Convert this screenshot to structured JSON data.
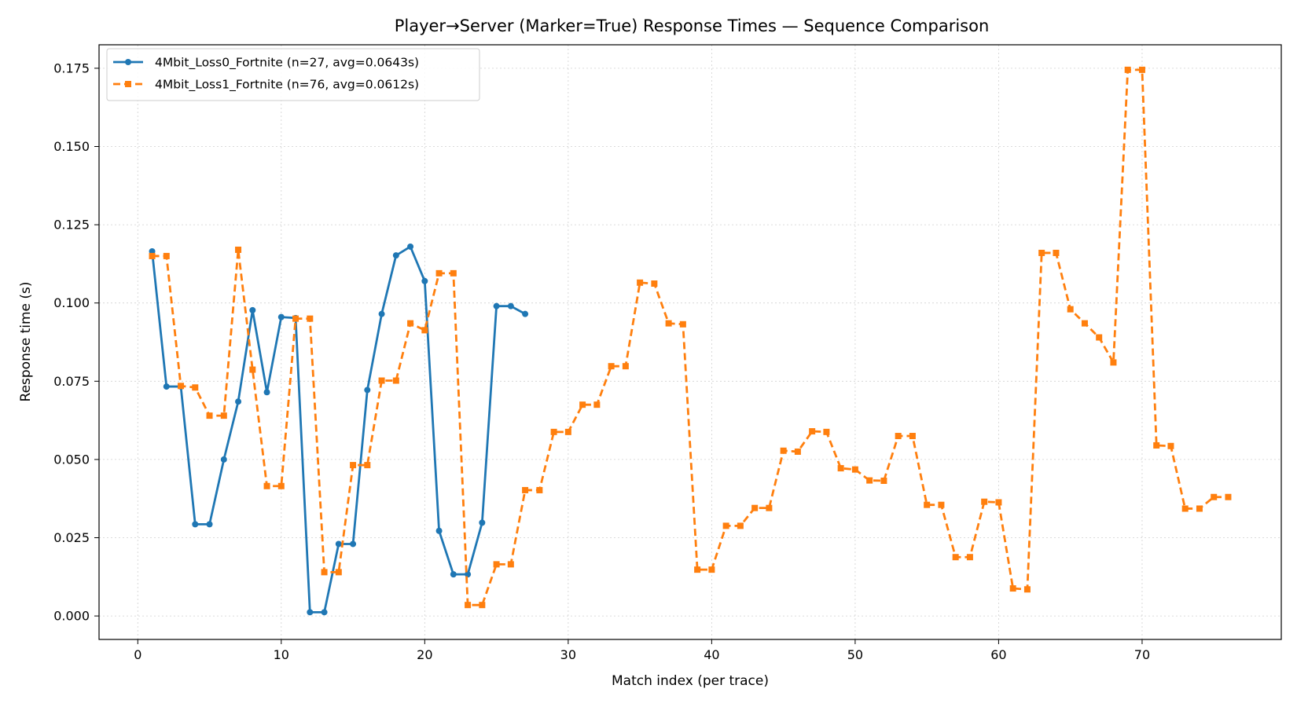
{
  "chart_data": {
    "type": "line",
    "title": "Player→Server (Marker=True) Response Times — Sequence Comparison",
    "xlabel": "Match index (per trace)",
    "ylabel": "Response time (s)",
    "xlim": [
      -2.7,
      79.7
    ],
    "ylim": [
      -0.0075,
      0.1825
    ],
    "xticks": [
      0,
      10,
      20,
      30,
      40,
      50,
      60,
      70
    ],
    "xtick_labels": [
      "0",
      "10",
      "20",
      "30",
      "40",
      "50",
      "60",
      "70"
    ],
    "yticks": [
      0,
      0.025,
      0.05,
      0.075,
      0.1,
      0.125,
      0.15,
      0.175
    ],
    "ytick_labels": [
      "0.000",
      "0.025",
      "0.050",
      "0.075",
      "0.100",
      "0.125",
      "0.150",
      "0.175"
    ],
    "grid": true,
    "legend_position": "top-left",
    "series": [
      {
        "name": "4Mbit_Loss0_Fortnite (n=27, avg=0.0643s)",
        "color": "#1f77b4",
        "line_style": "solid",
        "marker": "circle",
        "x": [
          1,
          2,
          3,
          4,
          5,
          6,
          7,
          8,
          9,
          10,
          11,
          12,
          13,
          14,
          15,
          16,
          17,
          18,
          19,
          20,
          21,
          22,
          23,
          24,
          25,
          26,
          27
        ],
        "y": [
          0.1165,
          0.0733,
          0.0733,
          0.0293,
          0.0293,
          0.05,
          0.0685,
          0.0977,
          0.0715,
          0.0955,
          0.0952,
          0.0012,
          0.0012,
          0.023,
          0.023,
          0.0722,
          0.0965,
          0.1152,
          0.118,
          0.107,
          0.0272,
          0.0133,
          0.0133,
          0.0298,
          0.099,
          0.099,
          0.0965
        ]
      },
      {
        "name": "4Mbit_Loss1_Fortnite (n=76, avg=0.0612s)",
        "color": "#ff7f0e",
        "line_style": "dashed",
        "marker": "square",
        "x": [
          1,
          2,
          3,
          4,
          5,
          6,
          7,
          8,
          9,
          10,
          11,
          12,
          13,
          14,
          15,
          16,
          17,
          18,
          19,
          20,
          21,
          22,
          23,
          24,
          25,
          26,
          27,
          28,
          29,
          30,
          31,
          32,
          33,
          34,
          35,
          36,
          37,
          38,
          39,
          40,
          41,
          42,
          43,
          44,
          45,
          46,
          47,
          48,
          49,
          50,
          51,
          52,
          53,
          54,
          55,
          56,
          57,
          58,
          59,
          60,
          61,
          62,
          63,
          64,
          65,
          66,
          67,
          68,
          69,
          70,
          71,
          72,
          73,
          74,
          75,
          76
        ],
        "y": [
          0.115,
          0.115,
          0.0735,
          0.073,
          0.064,
          0.064,
          0.117,
          0.0787,
          0.0415,
          0.0415,
          0.095,
          0.095,
          0.014,
          0.014,
          0.0482,
          0.0482,
          0.0752,
          0.0752,
          0.0935,
          0.0913,
          0.1095,
          0.1095,
          0.0035,
          0.0035,
          0.0165,
          0.0165,
          0.0402,
          0.0402,
          0.0588,
          0.0588,
          0.0675,
          0.0675,
          0.0798,
          0.0798,
          0.1065,
          0.1062,
          0.0935,
          0.0932,
          0.0148,
          0.0148,
          0.0288,
          0.0288,
          0.0345,
          0.0345,
          0.0528,
          0.0525,
          0.059,
          0.0588,
          0.0472,
          0.0468,
          0.0433,
          0.0432,
          0.0575,
          0.0575,
          0.0355,
          0.0355,
          0.0188,
          0.0188,
          0.0365,
          0.0363,
          0.0088,
          0.0085,
          0.116,
          0.116,
          0.098,
          0.0935,
          0.089,
          0.081,
          0.1745,
          0.1745,
          0.0545,
          0.0543,
          0.0343,
          0.0343,
          0.038,
          0.038
        ]
      }
    ]
  }
}
